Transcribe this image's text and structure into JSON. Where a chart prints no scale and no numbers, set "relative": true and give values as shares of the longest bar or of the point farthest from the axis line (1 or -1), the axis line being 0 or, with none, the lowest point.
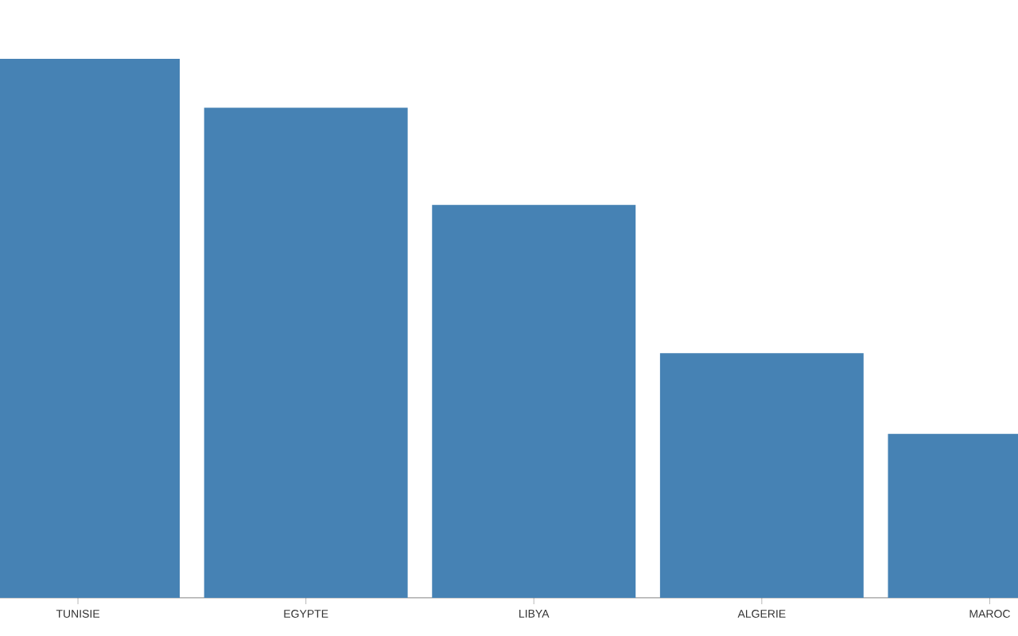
{
  "chart_data": {
    "type": "bar",
    "relative": true,
    "categories": [
      "TUNISIE",
      "EGYPTE",
      "LIBYA",
      "ALGERIE",
      "MAROC"
    ],
    "values": [
      1,
      0.909,
      0.729,
      0.454,
      0.304
    ],
    "color": "#4682b4"
  }
}
